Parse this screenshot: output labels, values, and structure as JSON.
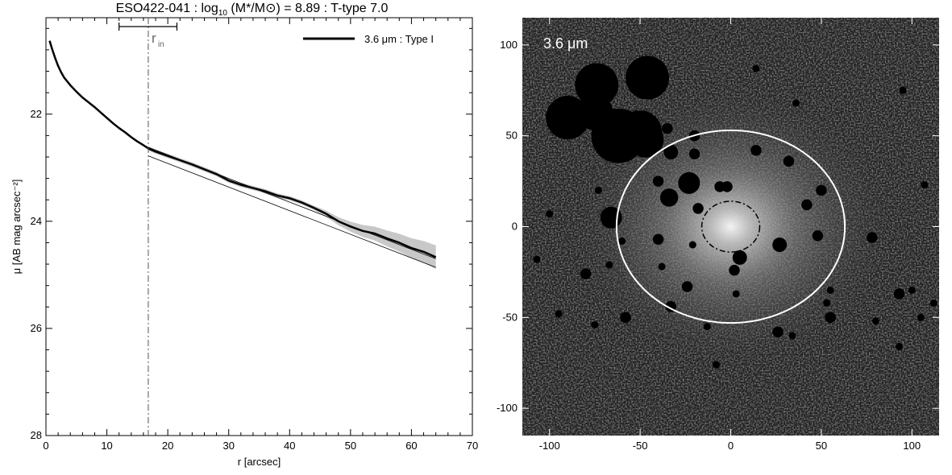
{
  "title": {
    "galaxy": "ESO422-041",
    "mass_prefix": "log",
    "mass_sub": "10",
    "mass_ratio": "(M*/M⊙)",
    "mass_value": "= 8.89",
    "ttype": "T-type 7.0"
  },
  "chart_data": [
    {
      "type": "line",
      "xlabel": "r [arcsec]",
      "ylabel": "μ [AB mag arcsec⁻²]",
      "xlim": [
        0,
        70
      ],
      "ylim": [
        28,
        20.2
      ],
      "y_inverted": true,
      "xticks": [
        0,
        10,
        20,
        30,
        40,
        50,
        60,
        70
      ],
      "yticks": [
        22,
        24,
        26,
        28
      ],
      "legend": {
        "label": "3.6 μm : Type I",
        "position": "top-right"
      },
      "r_in": {
        "label": "r",
        "label_sub": "in",
        "value": 16.8,
        "range": [
          12,
          21.5
        ]
      },
      "series": [
        {
          "name": "3.6 μm : Type I",
          "x": [
            0.6,
            1,
            1.5,
            2,
            2.5,
            3,
            4,
            5,
            6,
            7,
            8,
            9,
            10,
            11,
            12,
            13,
            14,
            15,
            16,
            16.8,
            18,
            20,
            22,
            24,
            26,
            28,
            30,
            32,
            34,
            36,
            38,
            40,
            42,
            44,
            46,
            48,
            50,
            52,
            54,
            56,
            58,
            60,
            62,
            64
          ],
          "y": [
            20.63,
            20.78,
            20.95,
            21.1,
            21.22,
            21.32,
            21.46,
            21.58,
            21.69,
            21.78,
            21.87,
            21.97,
            22.07,
            22.17,
            22.26,
            22.34,
            22.43,
            22.51,
            22.58,
            22.64,
            22.7,
            22.78,
            22.86,
            22.94,
            23.03,
            23.12,
            23.24,
            23.32,
            23.38,
            23.44,
            23.52,
            23.57,
            23.65,
            23.75,
            23.86,
            24.0,
            24.1,
            24.18,
            24.23,
            24.32,
            24.4,
            24.5,
            24.57,
            24.67
          ]
        }
      ],
      "fit_lines": [
        {
          "x": [
            16.8,
            64
          ],
          "y": [
            22.62,
            24.7
          ]
        },
        {
          "x": [
            16.8,
            64
          ],
          "y": [
            22.78,
            24.86
          ]
        }
      ]
    },
    {
      "type": "image",
      "band_label": "3.6 μm",
      "xlim": [
        -115,
        115
      ],
      "ylim": [
        -115,
        115
      ],
      "xticks": [
        -100,
        -50,
        0,
        50,
        100
      ],
      "yticks": [
        -100,
        -50,
        0,
        50,
        100
      ],
      "outer_ellipse": {
        "cx": 0,
        "cy": 0,
        "rx": 63,
        "ry": 53
      },
      "inner_ellipse": {
        "cx": 0,
        "cy": 0,
        "rx": 16,
        "ry": 14
      },
      "masks": [
        {
          "x": -90,
          "y": 60,
          "r": 12
        },
        {
          "x": -75,
          "y": 63,
          "r": 10
        },
        {
          "x": -74,
          "y": 78,
          "r": 12
        },
        {
          "x": -62,
          "y": 50,
          "r": 15
        },
        {
          "x": -50,
          "y": 52,
          "r": 12
        },
        {
          "x": -47,
          "y": 48,
          "r": 10
        },
        {
          "x": -46,
          "y": 82,
          "r": 12
        },
        {
          "x": -20,
          "y": 50,
          "r": 3
        },
        {
          "x": -35,
          "y": 54,
          "r": 3
        },
        {
          "x": -33,
          "y": 41,
          "r": 4
        },
        {
          "x": -20,
          "y": 40,
          "r": 3
        },
        {
          "x": 32,
          "y": 36,
          "r": 3
        },
        {
          "x": 14,
          "y": 42,
          "r": 3
        },
        {
          "x": -34,
          "y": 16,
          "r": 5
        },
        {
          "x": -23,
          "y": 24,
          "r": 6
        },
        {
          "x": -2,
          "y": 22,
          "r": 3
        },
        {
          "x": -40,
          "y": 25,
          "r": 3
        },
        {
          "x": -6,
          "y": 22,
          "r": 3
        },
        {
          "x": -66,
          "y": 5,
          "r": 6
        },
        {
          "x": -40,
          "y": -7,
          "r": 3
        },
        {
          "x": -21,
          "y": -10,
          "r": 2
        },
        {
          "x": -18,
          "y": 10,
          "r": 3
        },
        {
          "x": 27,
          "y": -10,
          "r": 4
        },
        {
          "x": 42,
          "y": 12,
          "r": 3
        },
        {
          "x": 50,
          "y": 20,
          "r": 3
        },
        {
          "x": 48,
          "y": -5,
          "r": 3
        },
        {
          "x": 5,
          "y": -17,
          "r": 4
        },
        {
          "x": 2,
          "y": -24,
          "r": 3
        },
        {
          "x": 78,
          "y": -6,
          "r": 3
        },
        {
          "x": 93,
          "y": -37,
          "r": 3
        },
        {
          "x": 53,
          "y": -42,
          "r": 2
        },
        {
          "x": 55,
          "y": -35,
          "r": 2
        },
        {
          "x": 34,
          "y": -60,
          "r": 2
        },
        {
          "x": 3,
          "y": -37,
          "r": 2
        },
        {
          "x": -24,
          "y": -33,
          "r": 3
        },
        {
          "x": -38,
          "y": -22,
          "r": 2
        },
        {
          "x": -73,
          "y": 20,
          "r": 2
        },
        {
          "x": -80,
          "y": -26,
          "r": 3
        },
        {
          "x": -33,
          "y": -44,
          "r": 3
        },
        {
          "x": -13,
          "y": -55,
          "r": 2
        },
        {
          "x": -75,
          "y": -54,
          "r": 2
        },
        {
          "x": -58,
          "y": -50,
          "r": 3
        },
        {
          "x": -8,
          "y": -76,
          "r": 2
        },
        {
          "x": 26,
          "y": -58,
          "r": 3
        },
        {
          "x": 55,
          "y": -50,
          "r": 3
        },
        {
          "x": 80,
          "y": -52,
          "r": 2
        },
        {
          "x": 93,
          "y": -66,
          "r": 2
        },
        {
          "x": 105,
          "y": -50,
          "r": 2
        },
        {
          "x": 100,
          "y": -35,
          "r": 2
        },
        {
          "x": 112,
          "y": -42,
          "r": 2
        },
        {
          "x": 107,
          "y": 23,
          "r": 2
        },
        {
          "x": 95,
          "y": 75,
          "r": 2
        },
        {
          "x": -107,
          "y": -18,
          "r": 2
        },
        {
          "x": -100,
          "y": 7,
          "r": 2
        },
        {
          "x": -95,
          "y": -48,
          "r": 2
        },
        {
          "x": 36,
          "y": 68,
          "r": 2
        },
        {
          "x": 14,
          "y": 87,
          "r": 2
        },
        {
          "x": -60,
          "y": -8,
          "r": 2
        },
        {
          "x": -67,
          "y": -21,
          "r": 2
        }
      ],
      "colors": {
        "background": "#202020",
        "ellipse_outer": "#ffffff",
        "ellipse_inner": "#000000"
      }
    }
  ]
}
